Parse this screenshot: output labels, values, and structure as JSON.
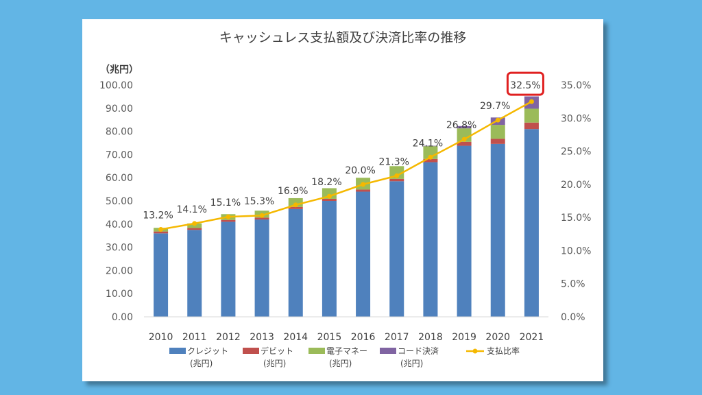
{
  "chart_data": {
    "type": "bar",
    "title": "キャッシュレス支払額及び決済比率の推移",
    "y_unit_label": "（兆円）",
    "categories": [
      "2010",
      "2011",
      "2012",
      "2013",
      "2014",
      "2015",
      "2016",
      "2017",
      "2018",
      "2019",
      "2020",
      "2021"
    ],
    "ylim": [
      0,
      100
    ],
    "yticks": [
      "0.00",
      "10.00",
      "20.00",
      "30.00",
      "40.00",
      "50.00",
      "60.00",
      "70.00",
      "80.00",
      "90.00",
      "100.00"
    ],
    "y2lim": [
      0,
      35
    ],
    "y2ticks": [
      "0.0%",
      "5.0%",
      "10.0%",
      "15.0%",
      "20.0%",
      "25.0%",
      "30.0%",
      "35.0%"
    ],
    "series": [
      {
        "name": "クレジット",
        "unit": "(兆円)",
        "color": "#4f81bd",
        "values": [
          36.0,
          37.5,
          41.0,
          42.0,
          46.5,
          50.0,
          54.0,
          58.5,
          66.7,
          73.8,
          74.6,
          81.0
        ]
      },
      {
        "name": "デビット",
        "unit": "(兆円)",
        "color": "#c0504d",
        "values": [
          0.8,
          0.8,
          0.8,
          0.8,
          0.9,
          0.9,
          0.9,
          1.0,
          1.4,
          1.7,
          2.2,
          2.8
        ]
      },
      {
        "name": "電子マネー",
        "unit": "(兆円)",
        "color": "#9bbb59",
        "values": [
          1.6,
          2.0,
          2.5,
          3.0,
          3.8,
          4.6,
          5.1,
          5.5,
          5.5,
          5.8,
          6.0,
          6.0
        ]
      },
      {
        "name": "コード決済",
        "unit": "(兆円)",
        "color": "#8064a2",
        "values": [
          0,
          0,
          0,
          0,
          0,
          0,
          0,
          0,
          0.2,
          1.0,
          3.2,
          5.3
        ]
      }
    ],
    "line_series": {
      "name": "支払比率",
      "color": "#f5b800",
      "values": [
        13.2,
        14.1,
        15.1,
        15.3,
        16.9,
        18.2,
        20.0,
        21.3,
        24.1,
        26.8,
        29.7,
        32.5
      ],
      "labels": [
        "13.2%",
        "14.1%",
        "15.1%",
        "15.3%",
        "16.9%",
        "18.2%",
        "20.0%",
        "21.3%",
        "24.1%",
        "26.8%",
        "29.7%",
        "32.5%"
      ]
    },
    "highlight_index": 11,
    "highlight_color": "#e02020",
    "legend_position": "bottom"
  }
}
